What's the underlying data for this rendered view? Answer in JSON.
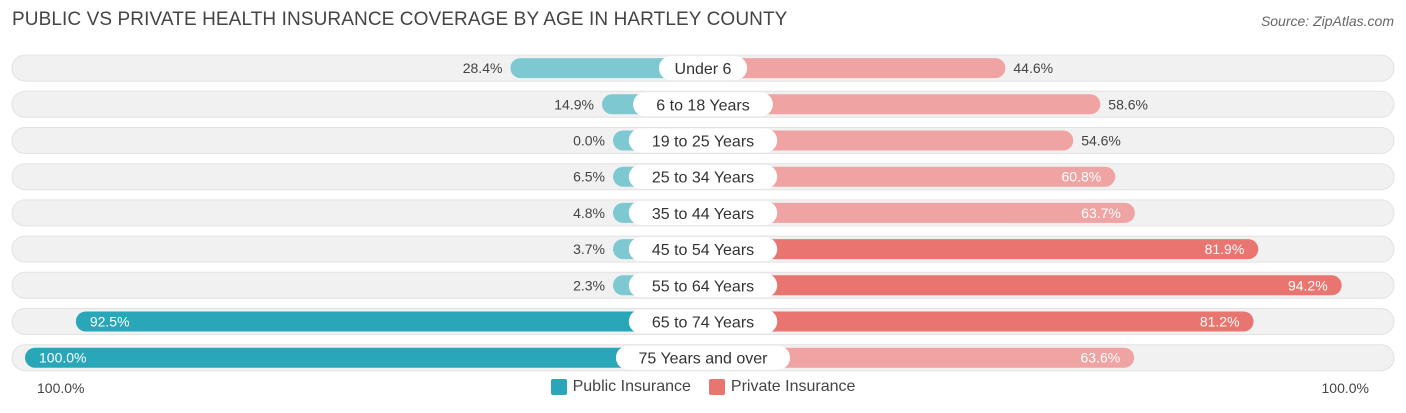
{
  "header": {
    "title": "PUBLIC VS PRIVATE HEALTH INSURANCE COVERAGE BY AGE IN HARTLEY COUNTY",
    "source": "Source: ZipAtlas.com"
  },
  "axis": {
    "left_label": "100.0%",
    "right_label": "100.0%"
  },
  "legend": {
    "public_label": "Public Insurance",
    "private_label": "Private Insurance"
  },
  "colors": {
    "public": "#7ec8d2",
    "public_strong": "#29a7b8",
    "private": "#f0a3a3",
    "private_strong": "#e8756f",
    "row_bg": "#f1f1f1"
  },
  "chart_data": {
    "type": "bar",
    "orientation": "horizontal-diverging",
    "xlim": [
      -100,
      100
    ],
    "categories": [
      "Under 6",
      "6 to 18 Years",
      "19 to 25 Years",
      "25 to 34 Years",
      "35 to 44 Years",
      "45 to 54 Years",
      "55 to 64 Years",
      "65 to 74 Years",
      "75 Years and over"
    ],
    "series": [
      {
        "name": "Public Insurance",
        "values": [
          28.4,
          14.9,
          0.0,
          6.5,
          4.8,
          3.7,
          2.3,
          92.5,
          100.0
        ],
        "labels": [
          "28.4%",
          "14.9%",
          "0.0%",
          "6.5%",
          "4.8%",
          "3.7%",
          "2.3%",
          "92.5%",
          "100.0%"
        ]
      },
      {
        "name": "Private Insurance",
        "values": [
          44.6,
          58.6,
          54.6,
          60.8,
          63.7,
          81.9,
          94.2,
          81.2,
          63.6
        ],
        "labels": [
          "44.6%",
          "58.6%",
          "54.6%",
          "60.8%",
          "63.7%",
          "81.9%",
          "94.2%",
          "81.2%",
          "63.6%"
        ]
      }
    ],
    "legend_position": "bottom-center"
  }
}
